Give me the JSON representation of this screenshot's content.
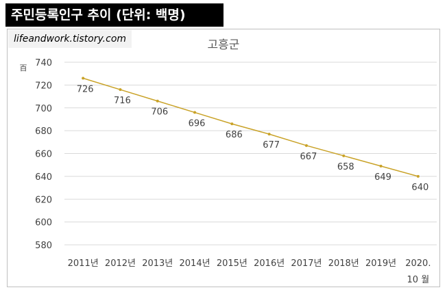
{
  "banner": {
    "text": "주민등록인구 추이 (단위: 백명)"
  },
  "watermark": {
    "text": "lifeandwork.tistory.com"
  },
  "chart_data": {
    "type": "line",
    "title": "고흥군",
    "ylabel": "",
    "y_unit_label": "百",
    "categories": [
      "2011년",
      "2012년",
      "2013년",
      "2014년",
      "2015년",
      "2016년",
      "2017년",
      "2018년",
      "2019년",
      "2020.\n10 월"
    ],
    "series": [
      {
        "values": [
          726,
          716,
          706,
          696,
          686,
          677,
          667,
          658,
          649,
          640
        ]
      }
    ],
    "data_labels": [
      "726",
      "716",
      "706",
      "696",
      "686",
      "677",
      "667",
      "658",
      "649",
      "640"
    ],
    "ylim": [
      580,
      740
    ],
    "yticks": [
      580,
      600,
      620,
      640,
      660,
      680,
      700,
      720,
      740
    ],
    "grid": true,
    "legend": "none",
    "colors": {
      "line": "#c9a227",
      "grid": "#d9d9d9",
      "text": "#404040",
      "title": "#595959"
    }
  }
}
